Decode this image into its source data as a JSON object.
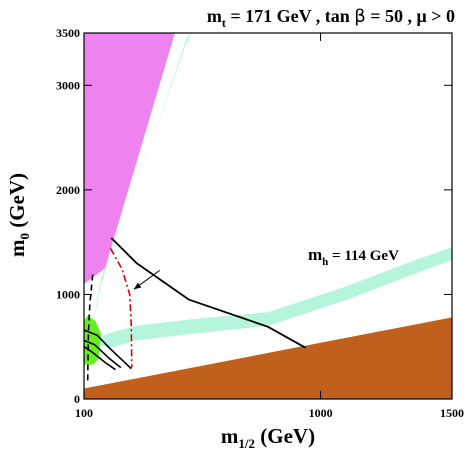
{
  "chart_data": {
    "type": "area",
    "title": "m_t = 171 GeV , tan β = 50 ,  μ > 0",
    "title_parts": {
      "mt_sym": "m",
      "mt_sub": "t",
      "mt_rest": " = 171 GeV , tan",
      "beta": "β",
      "tb_rest": " = 50 ,  μ > 0"
    },
    "xlabel": {
      "sym": "m",
      "sub": "1/2",
      "unit": " (GeV)"
    },
    "ylabel": {
      "sym": "m",
      "sub": "0",
      "unit": " (GeV)"
    },
    "xlim": [
      100,
      1500
    ],
    "ylim": [
      0,
      3500
    ],
    "x_ticks": [
      100,
      1000,
      1500
    ],
    "y_ticks": [
      0,
      1000,
      2000,
      3000,
      3500
    ],
    "x_tick_labels": [
      "100",
      "1000",
      "1500"
    ],
    "y_tick_labels": [
      "0",
      "1000",
      "2000",
      "3000",
      "3500"
    ],
    "annotation": {
      "sym": "m",
      "sub": "h",
      "text": " = 114 GeV"
    },
    "colors": {
      "magenta": "#ee82ee",
      "orange": "#c0601c",
      "green": "#66ee22",
      "cyan": "#b4f5dc",
      "red": "#dd0000",
      "black": "#000000"
    },
    "regions": {
      "magenta": [
        [
          100,
          3500
        ],
        [
          446,
          3500
        ],
        [
          180,
          1250
        ],
        [
          100,
          1100
        ]
      ],
      "orange": [
        [
          100,
          0
        ],
        [
          1500,
          0
        ],
        [
          1500,
          780
        ],
        [
          100,
          100
        ]
      ],
      "green": [
        [
          100,
          750
        ],
        [
          115,
          800
        ],
        [
          145,
          740
        ],
        [
          165,
          620
        ],
        [
          155,
          380
        ],
        [
          135,
          330
        ],
        [
          100,
          330
        ]
      ],
      "cyan_band_upper": [
        [
          [
            121,
            540
          ],
          [
            165,
            1100
          ],
          [
            245,
            1700
          ],
          [
            320,
            2200
          ],
          [
            390,
            2700
          ],
          [
            470,
            3300
          ],
          [
            490,
            3450
          ]
        ],
        [
          [
            121,
            540
          ],
          [
            165,
            1150
          ],
          [
            255,
            1770
          ],
          [
            335,
            2300
          ],
          [
            405,
            2800
          ],
          [
            485,
            3380
          ],
          [
            510,
            3500
          ]
        ]
      ],
      "cyan_band_lower": [
        [
          [
            121,
            540
          ],
          [
            200,
            490
          ],
          [
            300,
            560
          ],
          [
            500,
            620
          ],
          [
            800,
            700
          ],
          [
            1100,
            950
          ],
          [
            1350,
            1190
          ],
          [
            1500,
            1330
          ]
        ],
        [
          [
            121,
            540
          ],
          [
            195,
            630
          ],
          [
            300,
            700
          ],
          [
            500,
            760
          ],
          [
            800,
            830
          ],
          [
            1100,
            1080
          ],
          [
            1350,
            1320
          ],
          [
            1500,
            1450
          ]
        ]
      ]
    },
    "curves": {
      "mh_black": [
        [
          204,
          1540
        ],
        [
          300,
          1300
        ],
        [
          500,
          950
        ],
        [
          800,
          690
        ],
        [
          943,
          490
        ]
      ],
      "mh_red": [
        [
          201,
          1440
        ],
        [
          245,
          1240
        ],
        [
          274,
          1000
        ],
        [
          280,
          700
        ],
        [
          282,
          300
        ]
      ],
      "black_dashed": [
        [
          133,
          1190
        ],
        [
          122,
          900
        ],
        [
          117,
          650
        ],
        [
          115,
          320
        ],
        [
          114,
          160
        ]
      ],
      "black_solid_1": [
        [
          100,
          660
        ],
        [
          150,
          610
        ],
        [
          200,
          480
        ],
        [
          280,
          290
        ]
      ],
      "black_solid_2": [
        [
          100,
          560
        ],
        [
          140,
          520
        ],
        [
          200,
          380
        ],
        [
          240,
          300
        ]
      ],
      "black_solid_3": [
        [
          100,
          500
        ],
        [
          130,
          450
        ],
        [
          180,
          350
        ],
        [
          220,
          280
        ]
      ]
    },
    "arrow": {
      "from": [
        388,
        1230
      ],
      "to": [
        290,
        1050
      ]
    }
  }
}
